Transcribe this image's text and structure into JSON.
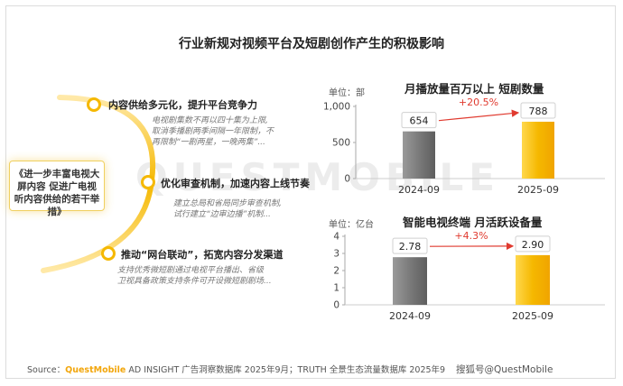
{
  "title": "行业新规对视频平台及短剧创作产生的积极影响",
  "watermark": "QUESTMOBILE",
  "center_box": "《进一步丰富电视大屏内容 促进广电视听内容供给的若干举措》",
  "items": [
    {
      "title": "内容供给多元化，提升平台竞争力",
      "desc": [
        "电视剧集数不再以四十集为上限,",
        "取消季播剧两季间隔一年限制，不",
        "再限制“一剧两星，一晚两集”..."
      ]
    },
    {
      "title": "优化审查机制，加速内容上线节奏",
      "desc": [
        "建立总局和省局同步审查机制,",
        "试行建立“边审边播”机制..."
      ]
    },
    {
      "title": "推动“网台联动”，拓宽内容分发渠道",
      "desc": [
        "支持优秀微短剧通过电视平台播出、省级",
        "卫视具备政策支持条件可开设微短剧剧场..."
      ]
    }
  ],
  "colors": {
    "accent": "#f5b800",
    "accent_light": "#ffd84d",
    "gray_bar": "#7a7a7a",
    "arrow": "#e03a2f"
  },
  "chart_data": [
    {
      "type": "bar",
      "title": "月播放量百万以上 短剧数量",
      "unit": "单位：部",
      "categories": [
        "2024-09",
        "2025-09"
      ],
      "values": [
        654,
        788
      ],
      "value_labels": [
        "654",
        "788"
      ],
      "ylim": [
        0,
        1000
      ],
      "yticks": [
        0,
        500,
        1000
      ],
      "ytick_labels": [
        "0",
        "500",
        "1,000"
      ],
      "growth_label": "+20.5%"
    },
    {
      "type": "bar",
      "title": "智能电视终端 月活跃设备量",
      "unit": "单位：亿台",
      "categories": [
        "2024-09",
        "2025-09"
      ],
      "values": [
        2.78,
        2.9
      ],
      "value_labels": [
        "2.78",
        "2.90"
      ],
      "ylim": [
        0,
        4
      ],
      "yticks": [
        0,
        1,
        2,
        3,
        4
      ],
      "ytick_labels": [
        "0",
        "1",
        "2",
        "3",
        "4"
      ],
      "growth_label": "+4.3%"
    }
  ],
  "footer": {
    "source_prefix": "Source：",
    "source_brand": "QuestMobile",
    "source_rest": " AD INSIGHT 广告洞察数据库 2025年9月；TRUTH 全景生态流量数据库 2025年9",
    "logo": "搜狐号@QuestMobile"
  }
}
